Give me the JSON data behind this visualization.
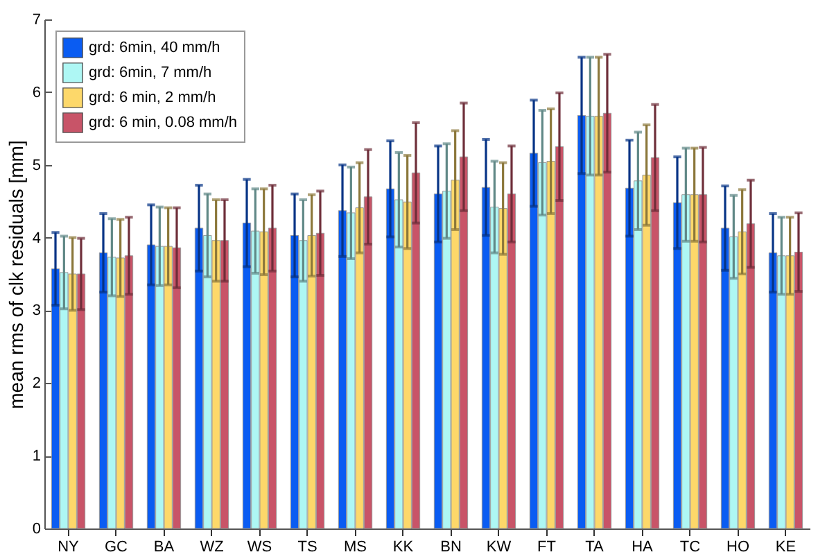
{
  "chart_data": {
    "type": "bar",
    "ylabel": "mean rms of clk residuals [mm]",
    "categories": [
      "NY",
      "GC",
      "BA",
      "WZ",
      "WS",
      "TS",
      "MS",
      "KK",
      "BN",
      "KW",
      "FT",
      "TA",
      "HA",
      "TC",
      "HO",
      "KE"
    ],
    "ylim": [
      0,
      7
    ],
    "yticks": [
      0,
      1,
      2,
      3,
      4,
      5,
      6,
      7
    ],
    "grid": false,
    "legend": "top left",
    "series": [
      {
        "name": "grd: 6min, 40 mm/h",
        "color": "#0a5cf2",
        "values": [
          3.57,
          3.79,
          3.9,
          4.13,
          4.2,
          4.03,
          4.37,
          4.67,
          4.6,
          4.69,
          5.16,
          5.68,
          4.68,
          4.48,
          4.13,
          3.79
        ],
        "errors": [
          0.5,
          0.54,
          0.55,
          0.59,
          0.6,
          0.57,
          0.63,
          0.66,
          0.66,
          0.66,
          0.73,
          0.8,
          0.66,
          0.63,
          0.58,
          0.54
        ]
      },
      {
        "name": "grd: 6min, 7 mm/h",
        "color": "#aef7f4",
        "values": [
          3.52,
          3.73,
          3.88,
          4.03,
          4.09,
          3.96,
          4.34,
          4.52,
          4.64,
          4.42,
          5.03,
          5.67,
          4.78,
          4.59,
          4.01,
          3.75
        ],
        "errors": [
          0.5,
          0.53,
          0.54,
          0.57,
          0.58,
          0.56,
          0.63,
          0.65,
          0.65,
          0.63,
          0.72,
          0.81,
          0.67,
          0.64,
          0.57,
          0.53
        ]
      },
      {
        "name": "grd: 6 min, 2 mm/h",
        "color": "#fdd86a",
        "values": [
          3.5,
          3.72,
          3.88,
          3.96,
          4.08,
          4.03,
          4.41,
          4.49,
          4.79,
          4.4,
          5.05,
          5.67,
          4.86,
          4.59,
          4.08,
          3.75
        ],
        "errors": [
          0.5,
          0.53,
          0.53,
          0.56,
          0.59,
          0.56,
          0.62,
          0.64,
          0.68,
          0.63,
          0.72,
          0.81,
          0.69,
          0.64,
          0.58,
          0.53
        ]
      },
      {
        "name": "grd: 6 min, 0.08 mm/h",
        "color": "#c85468",
        "values": [
          3.5,
          3.75,
          3.86,
          3.96,
          4.13,
          4.06,
          4.56,
          4.89,
          5.11,
          4.6,
          5.25,
          5.71,
          5.1,
          4.59,
          4.19,
          3.8
        ],
        "errors": [
          0.49,
          0.53,
          0.55,
          0.56,
          0.59,
          0.58,
          0.65,
          0.69,
          0.74,
          0.66,
          0.74,
          0.81,
          0.73,
          0.65,
          0.6,
          0.54
        ]
      }
    ]
  }
}
